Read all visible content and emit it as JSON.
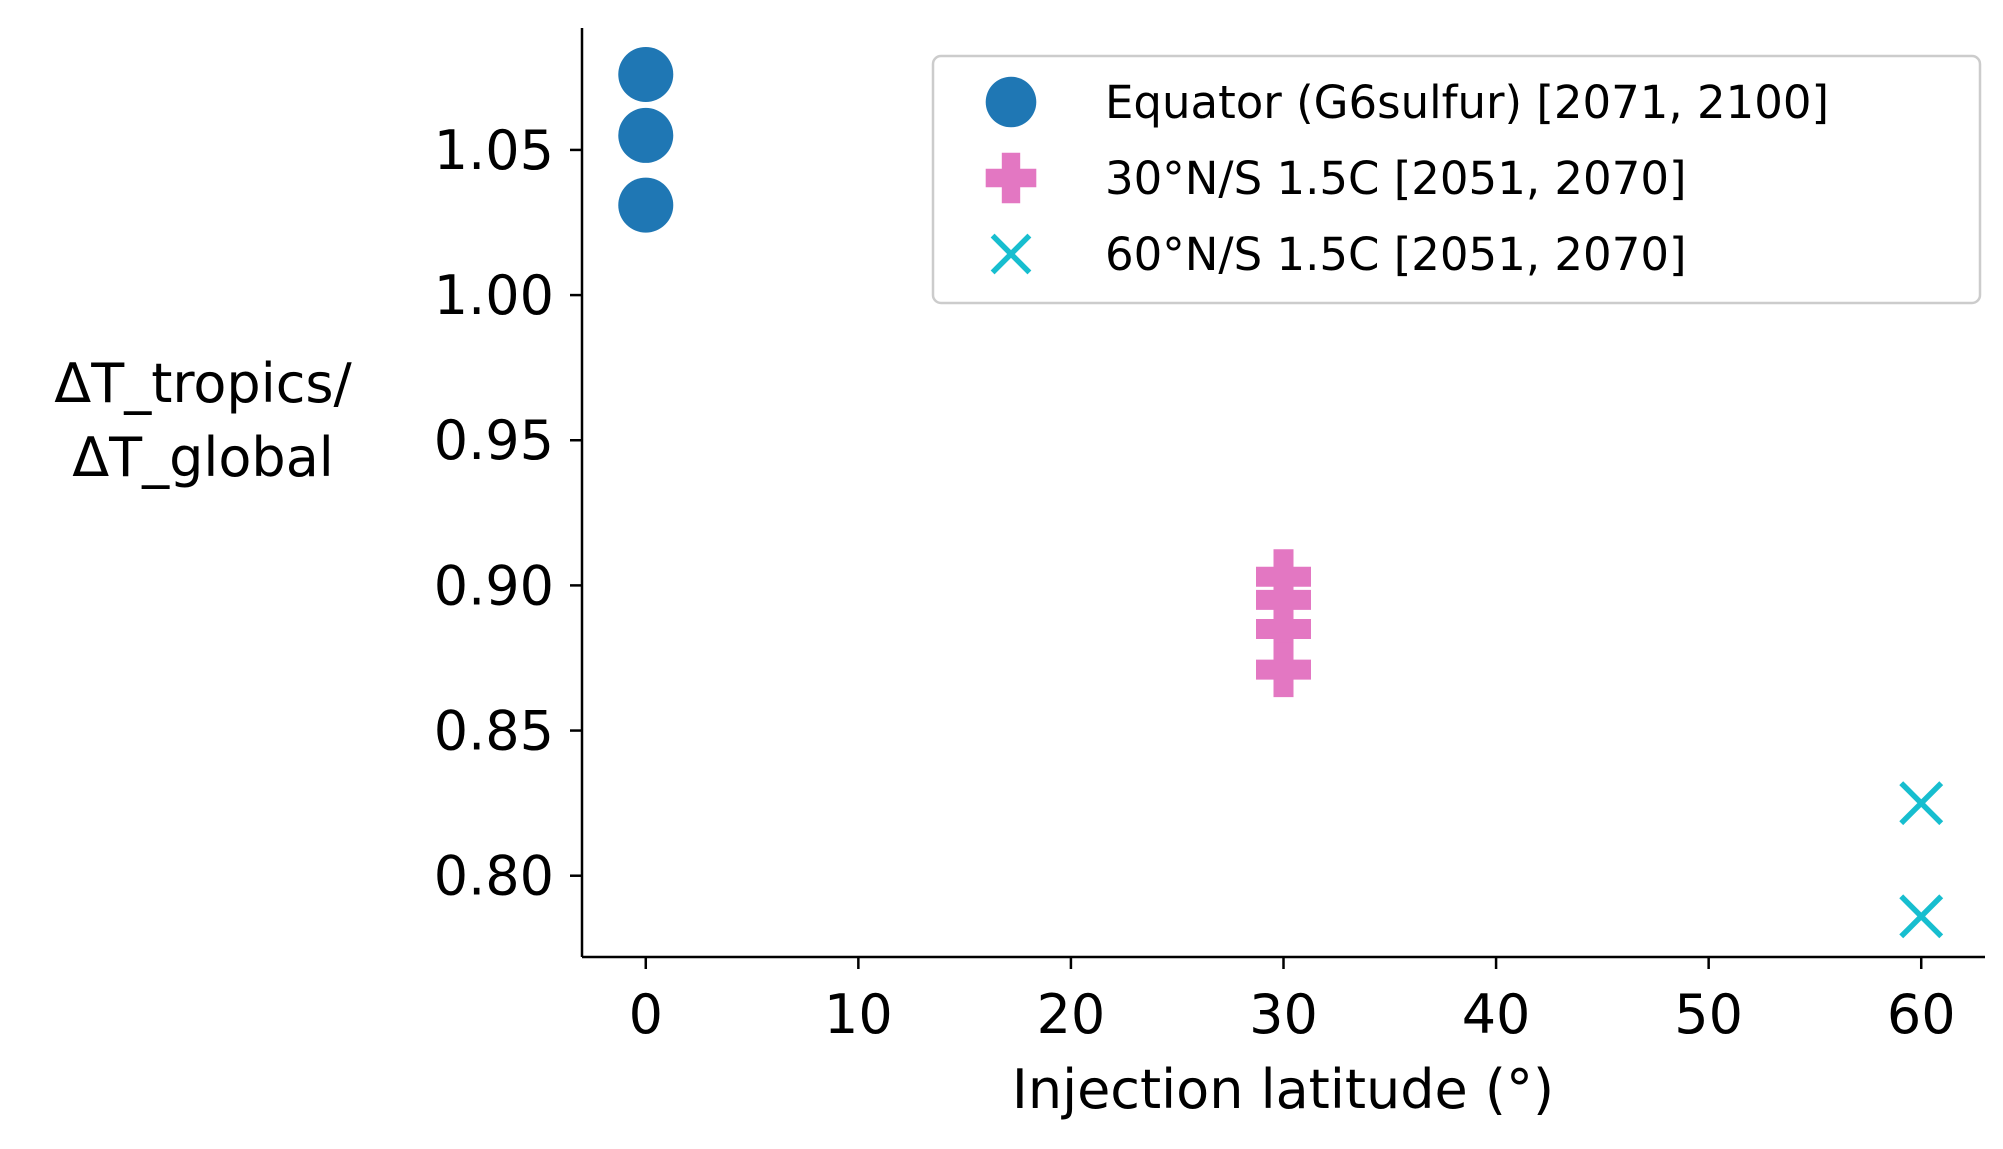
{
  "chart_data": {
    "type": "scatter",
    "title": "",
    "xlabel": "Injection latitude (°)",
    "ylabel_lines": [
      "ΔT_tropics/",
      "ΔT_global"
    ],
    "xlim": [
      -3,
      63
    ],
    "ylim": [
      0.772,
      1.092
    ],
    "xticks": [
      0,
      10,
      20,
      30,
      40,
      50,
      60
    ],
    "xtick_labels": [
      "0",
      "10",
      "20",
      "30",
      "40",
      "50",
      "60"
    ],
    "yticks": [
      0.8,
      0.85,
      0.9,
      0.95,
      1.0,
      1.05
    ],
    "ytick_labels": [
      "0.80",
      "0.85",
      "0.90",
      "0.95",
      "1.00",
      "1.05"
    ],
    "grid": false,
    "legend_position": "top-right",
    "series": [
      {
        "name": "Equator (G6sulfur) [2071, 2100]",
        "marker": "circle",
        "color": "#1f77b4",
        "x": [
          0,
          0,
          0
        ],
        "y": [
          1.076,
          1.055,
          1.031
        ]
      },
      {
        "name": "30°N/S 1.5C [2051, 2070]",
        "marker": "plus-filled",
        "color": "#e377c2",
        "x": [
          30,
          30,
          30,
          30
        ],
        "y": [
          0.903,
          0.895,
          0.885,
          0.871
        ]
      },
      {
        "name": "60°N/S 1.5C [2051, 2070]",
        "marker": "x",
        "color": "#17becf",
        "x": [
          60,
          60
        ],
        "y": [
          0.825,
          0.786
        ]
      }
    ]
  }
}
